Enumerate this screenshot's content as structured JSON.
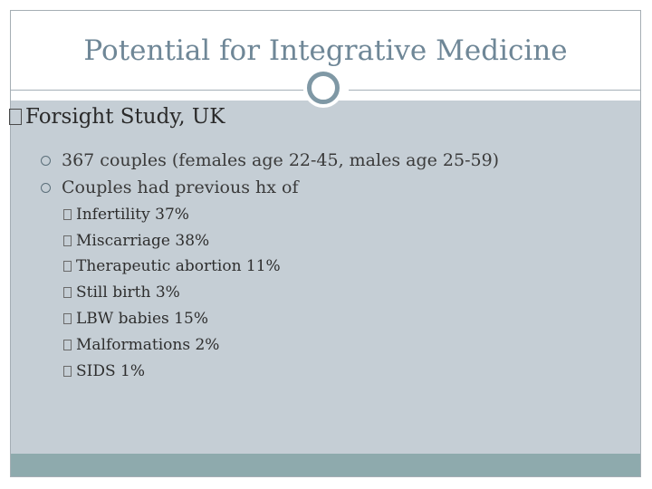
{
  "slide": {
    "title": "Potential for Integrative Medicine",
    "heading": "Forsight Study, UK",
    "points": [
      "367 couples (females age 22-45, males age 25-59)",
      "Couples had previous hx of"
    ],
    "subpoints": [
      "Infertility 37%",
      "Miscarriage 38%",
      "Therapeutic abortion 11%",
      "Still birth 3%",
      "LBW babies 15%",
      "Malformations 2%",
      "SIDS 1%"
    ]
  },
  "colors": {
    "title": "#6f8797",
    "content_bg": "#c5ced5",
    "footer_bar": "#8eaaad",
    "ring": "#7f98a5"
  }
}
